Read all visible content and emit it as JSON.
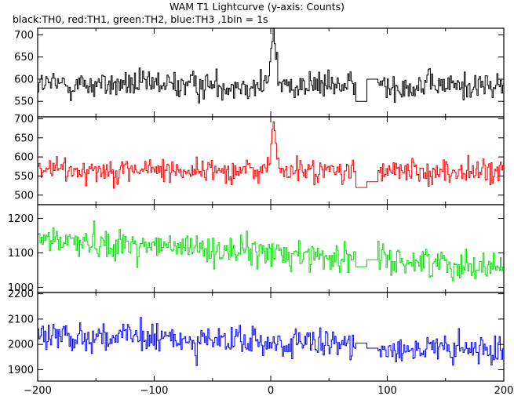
{
  "chart_data": {
    "type": "line",
    "title": "WAM T1 Lightcurve (y-axis: Counts)",
    "subtitle": "black:TH0, red:TH1, green:TH2, blue:TH3 ,1bin = 1s",
    "xlabel": "",
    "ylabel": "",
    "xlim": [
      -200,
      200
    ],
    "x_ticks": [
      -200,
      -100,
      0,
      100,
      200
    ],
    "x_tick_labels": [
      "−200",
      "−100",
      "0",
      "100",
      "200"
    ],
    "grid": false,
    "data_gap": [
      73,
      92
    ],
    "series": [
      {
        "name": "TH0",
        "color": "#000000",
        "ylim": [
          515,
          715
        ],
        "y_ticks": [
          550,
          600,
          650,
          700
        ],
        "mean_start": 588,
        "mean_end": 585,
        "noise": 22,
        "gap_level_before": 550,
        "gap_level_after": 600,
        "flare": {
          "center": 2,
          "width": 3,
          "peak": 120
        }
      },
      {
        "name": "TH1",
        "color": "#ff0000",
        "ylim": [
          475,
          705
        ],
        "y_ticks": [
          500,
          550,
          600,
          650,
          700
        ],
        "mean_start": 568,
        "mean_end": 560,
        "noise": 23,
        "gap_level_before": 520,
        "gap_level_after": 535,
        "flare": {
          "center": 2,
          "width": 3,
          "peak": 115
        }
      },
      {
        "name": "TH2",
        "color": "#00e000",
        "ylim": [
          985,
          1240
        ],
        "y_ticks": [
          1000,
          1100,
          1200
        ],
        "mean_start": 1140,
        "mean_end": 1060,
        "noise": 30,
        "gap_level_before": 1060,
        "gap_level_after": 1080,
        "flare": null
      },
      {
        "name": "TH3",
        "color": "#0000ff",
        "ylim": [
          1855,
          2205
        ],
        "y_ticks": [
          1900,
          2000,
          2100,
          2200
        ],
        "mean_start": 2040,
        "mean_end": 1970,
        "noise": 42,
        "gap_level_before": 2005,
        "gap_level_after": 1985,
        "flare": null
      }
    ]
  }
}
